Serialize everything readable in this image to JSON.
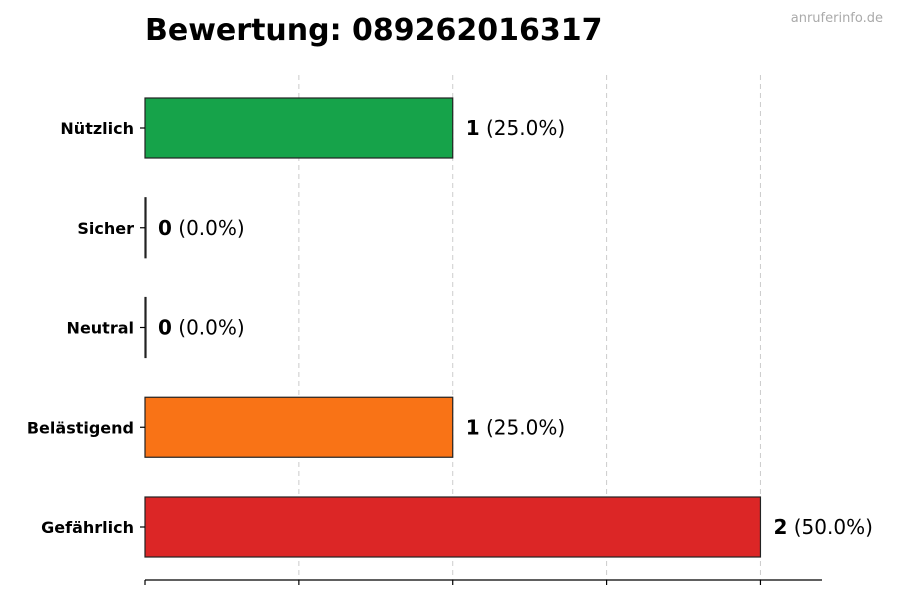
{
  "chart_data": {
    "type": "bar",
    "orientation": "horizontal",
    "title": "Bewertung: 089262016317",
    "watermark": "anruferinfo.de",
    "categories": [
      "Nützlich",
      "Sicher",
      "Neutral",
      "Belästigend",
      "Gefährlich"
    ],
    "values": [
      1,
      0,
      0,
      1,
      2
    ],
    "percent_labels": [
      "(25.0%)",
      "(0.0%)",
      "(0.0%)",
      "(25.0%)",
      "(50.0%)"
    ],
    "colors": [
      "#16a34a",
      "#2563eb",
      "#9ca3af",
      "#f97316",
      "#dc2626"
    ],
    "xlim": [
      0,
      2.2
    ],
    "grid": true,
    "xlabel": "",
    "ylabel": ""
  }
}
